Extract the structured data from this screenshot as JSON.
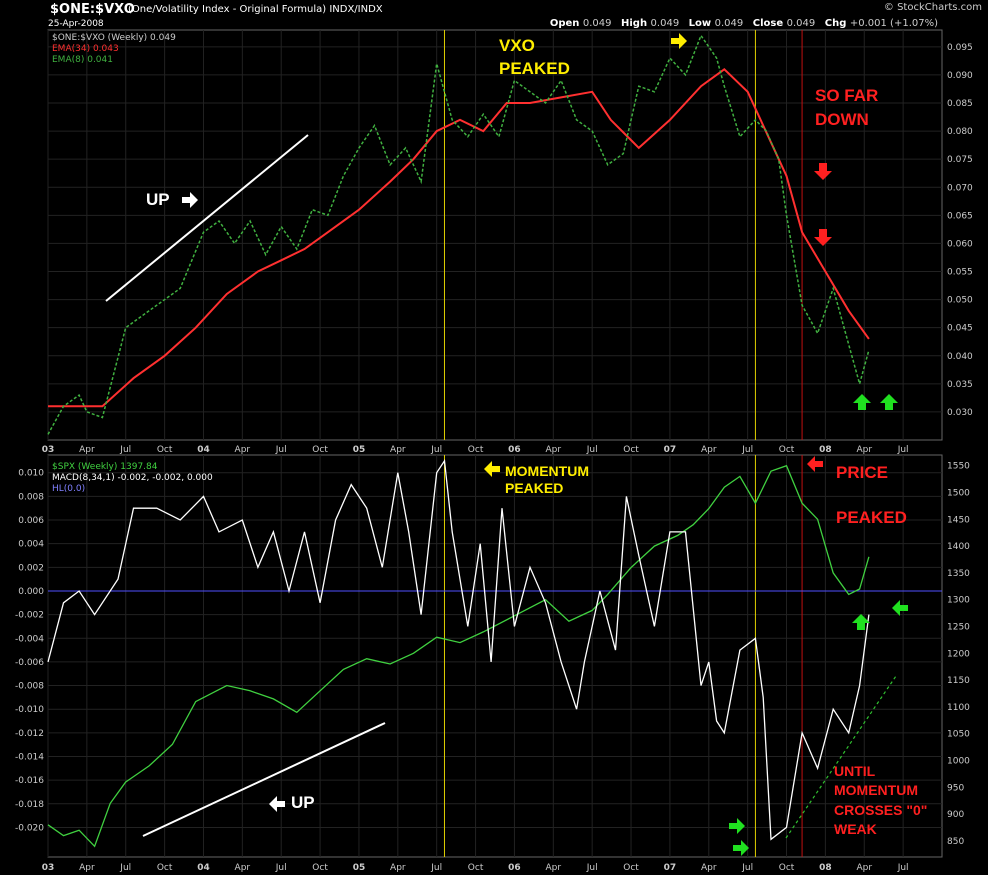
{
  "header": {
    "symbol": "$ONE:$VXO",
    "name": "(One/Volatility Index - Original Formula)  INDX/INDX",
    "date": "25-Apr-2008",
    "logo": "© StockCharts.com",
    "open_label": "Open",
    "open": "0.049",
    "high_label": "High",
    "high": "0.049",
    "low_label": "Low",
    "low": "0.049",
    "close_label": "Close",
    "close": "0.049",
    "chg_label": "Chg",
    "chg": "+0.001 (+1.07%)"
  },
  "chart_data": [
    {
      "type": "line",
      "legend": [
        "$ONE:$VXO (Weekly) 0.049",
        "EMA(34) 0.043",
        "EMA(8) 0.041"
      ],
      "x_tick_labels": [
        "03",
        "Apr",
        "Jul",
        "Oct",
        "04",
        "Apr",
        "Jul",
        "Oct",
        "05",
        "Apr",
        "Jul",
        "Oct",
        "06",
        "Apr",
        "Jul",
        "Oct",
        "07",
        "Apr",
        "Jul",
        "Oct",
        "08",
        "Apr",
        "Jul"
      ],
      "x_range": [
        2003.0,
        2008.75
      ],
      "ylim": [
        0.025,
        0.098
      ],
      "y_ticks": [
        "0.030",
        "0.035",
        "0.040",
        "0.045",
        "0.050",
        "0.055",
        "0.060",
        "0.065",
        "0.070",
        "0.075",
        "0.080",
        "0.085",
        "0.090",
        "0.095"
      ],
      "colors": {
        "ema34": "#ff3030",
        "ema8": "#40b040"
      },
      "series": [
        {
          "name": "EMA(34)",
          "x": [
            2003.0,
            2003.2,
            2003.35,
            2003.55,
            2003.75,
            2003.95,
            2004.15,
            2004.35,
            2004.5,
            2004.65,
            2004.8,
            2005.0,
            2005.2,
            2005.35,
            2005.5,
            2005.65,
            2005.8,
            2005.95,
            2006.1,
            2006.3,
            2006.5,
            2006.62,
            2006.8,
            2007.0,
            2007.2,
            2007.35,
            2007.5,
            2007.6,
            2007.75,
            2007.85,
            2008.0,
            2008.15,
            2008.28
          ],
          "values": [
            0.031,
            0.031,
            0.031,
            0.036,
            0.04,
            0.045,
            0.051,
            0.055,
            0.057,
            0.059,
            0.062,
            0.066,
            0.071,
            0.075,
            0.08,
            0.082,
            0.08,
            0.085,
            0.085,
            0.086,
            0.087,
            0.082,
            0.077,
            0.082,
            0.088,
            0.091,
            0.087,
            0.081,
            0.072,
            0.062,
            0.055,
            0.048,
            0.043
          ]
        },
        {
          "name": "EMA(8)",
          "x": [
            2003.0,
            2003.1,
            2003.2,
            2003.25,
            2003.35,
            2003.5,
            2003.6,
            2003.7,
            2003.85,
            2004.0,
            2004.1,
            2004.2,
            2004.3,
            2004.4,
            2004.5,
            2004.6,
            2004.7,
            2004.8,
            2004.9,
            2005.0,
            2005.1,
            2005.2,
            2005.3,
            2005.4,
            2005.5,
            2005.6,
            2005.7,
            2005.8,
            2005.9,
            2006.0,
            2006.1,
            2006.2,
            2006.3,
            2006.4,
            2006.5,
            2006.6,
            2006.7,
            2006.8,
            2006.9,
            2007.0,
            2007.1,
            2007.2,
            2007.3,
            2007.35,
            2007.45,
            2007.55,
            2007.62,
            2007.7,
            2007.75,
            2007.85,
            2007.95,
            2008.05,
            2008.15,
            2008.22,
            2008.28
          ],
          "values": [
            0.026,
            0.031,
            0.033,
            0.03,
            0.029,
            0.045,
            0.047,
            0.049,
            0.052,
            0.062,
            0.064,
            0.06,
            0.064,
            0.058,
            0.063,
            0.059,
            0.066,
            0.065,
            0.072,
            0.077,
            0.081,
            0.074,
            0.077,
            0.071,
            0.092,
            0.082,
            0.079,
            0.083,
            0.079,
            0.089,
            0.087,
            0.085,
            0.089,
            0.082,
            0.08,
            0.074,
            0.076,
            0.088,
            0.087,
            0.093,
            0.09,
            0.097,
            0.093,
            0.088,
            0.079,
            0.082,
            0.08,
            0.075,
            0.065,
            0.049,
            0.044,
            0.052,
            0.042,
            0.035,
            0.041
          ]
        }
      ]
    },
    {
      "type": "line",
      "legend": [
        "$SPX (Weekly) 1397.84",
        "MACD(8,34,1) -0.002, -0.002, 0.000",
        "HL(0.0)"
      ],
      "x_tick_labels": [
        "03",
        "Apr",
        "Jul",
        "Oct",
        "04",
        "Apr",
        "Jul",
        "Oct",
        "05",
        "Apr",
        "Jul",
        "Oct",
        "06",
        "Apr",
        "Jul",
        "Oct",
        "07",
        "Apr",
        "Jul",
        "Oct",
        "08",
        "Apr",
        "Jul"
      ],
      "x_range": [
        2003.0,
        2008.75
      ],
      "ylim_left": [
        -0.0225,
        0.0115
      ],
      "ylim_right": [
        820,
        1570
      ],
      "y_ticks_left": [
        "0.010",
        "0.008",
        "0.006",
        "0.004",
        "0.002",
        "0.000",
        "-0.002",
        "-0.004",
        "-0.006",
        "-0.008",
        "-0.010",
        "-0.012",
        "-0.014",
        "-0.016",
        "-0.018",
        "-0.020"
      ],
      "y_ticks_right": [
        "1550",
        "1500",
        "1450",
        "1400",
        "1350",
        "1300",
        "1250",
        "1200",
        "1150",
        "1100",
        "1050",
        "1000",
        "950",
        "900",
        "850"
      ],
      "colors": {
        "spx": "#40d040",
        "macd": "#ffffff",
        "hl": "#5050ff"
      },
      "series": [
        {
          "name": "$SPX",
          "x": [
            2003.0,
            2003.1,
            2003.2,
            2003.3,
            2003.4,
            2003.5,
            2003.65,
            2003.8,
            2003.95,
            2004.15,
            2004.3,
            2004.45,
            2004.6,
            2004.75,
            2004.9,
            2005.05,
            2005.2,
            2005.35,
            2005.5,
            2005.65,
            2005.8,
            2006.0,
            2006.2,
            2006.35,
            2006.5,
            2006.6,
            2006.75,
            2006.9,
            2007.05,
            2007.15,
            2007.25,
            2007.35,
            2007.45,
            2007.55,
            2007.65,
            2007.75,
            2007.85,
            2007.95,
            2008.05,
            2008.15,
            2008.22,
            2008.28
          ],
          "values": [
            880,
            860,
            870,
            840,
            920,
            960,
            990,
            1030,
            1110,
            1140,
            1130,
            1115,
            1090,
            1130,
            1170,
            1190,
            1180,
            1200,
            1230,
            1220,
            1240,
            1270,
            1300,
            1260,
            1280,
            1310,
            1360,
            1400,
            1420,
            1440,
            1470,
            1510,
            1530,
            1480,
            1540,
            1550,
            1480,
            1450,
            1350,
            1310,
            1320,
            1380
          ]
        },
        {
          "name": "MACD(8,34,1)",
          "x": [
            2003.0,
            2003.1,
            2003.2,
            2003.3,
            2003.45,
            2003.55,
            2003.7,
            2003.85,
            2004.0,
            2004.1,
            2004.25,
            2004.35,
            2004.45,
            2004.55,
            2004.65,
            2004.75,
            2004.85,
            2004.95,
            2005.05,
            2005.15,
            2005.25,
            2005.32,
            2005.4,
            2005.5,
            2005.55,
            2005.6,
            2005.7,
            2005.78,
            2005.85,
            2005.92,
            2006.0,
            2006.1,
            2006.2,
            2006.3,
            2006.4,
            2006.45,
            2006.55,
            2006.65,
            2006.72,
            2006.8,
            2006.9,
            2007.0,
            2007.1,
            2007.2,
            2007.25,
            2007.3,
            2007.35,
            2007.45,
            2007.55,
            2007.6,
            2007.65,
            2007.75,
            2007.85,
            2007.95,
            2008.05,
            2008.15,
            2008.22,
            2008.28
          ],
          "values": [
            -0.006,
            -0.001,
            0.0,
            -0.002,
            0.001,
            0.007,
            0.007,
            0.006,
            0.008,
            0.005,
            0.006,
            0.002,
            0.005,
            0.0,
            0.005,
            -0.001,
            0.006,
            0.009,
            0.007,
            0.002,
            0.01,
            0.005,
            -0.002,
            0.01,
            0.011,
            0.005,
            -0.003,
            0.004,
            -0.006,
            0.007,
            -0.003,
            0.002,
            -0.001,
            -0.006,
            -0.01,
            -0.006,
            0.0,
            -0.005,
            0.008,
            0.003,
            -0.003,
            0.005,
            0.005,
            -0.008,
            -0.006,
            -0.011,
            -0.012,
            -0.005,
            -0.004,
            -0.009,
            -0.021,
            -0.02,
            -0.012,
            -0.015,
            -0.01,
            -0.012,
            -0.008,
            -0.002
          ]
        }
      ],
      "hl": 0.0
    }
  ],
  "annotations": {
    "up_top": "UP",
    "vxo_peaked_1": "VXO",
    "vxo_peaked_2": "PEAKED",
    "so_far_1": "SO FAR",
    "so_far_2": "DOWN",
    "momentum_1": "MOMENTUM",
    "momentum_2": "PEAKED",
    "price": "PRICE",
    "peaked": "PEAKED",
    "up_bottom": "UP",
    "until_1": "UNTIL",
    "until_2": "MOMENTUM",
    "until_3": "CROSSES \"0\"",
    "until_4": "WEAK"
  }
}
